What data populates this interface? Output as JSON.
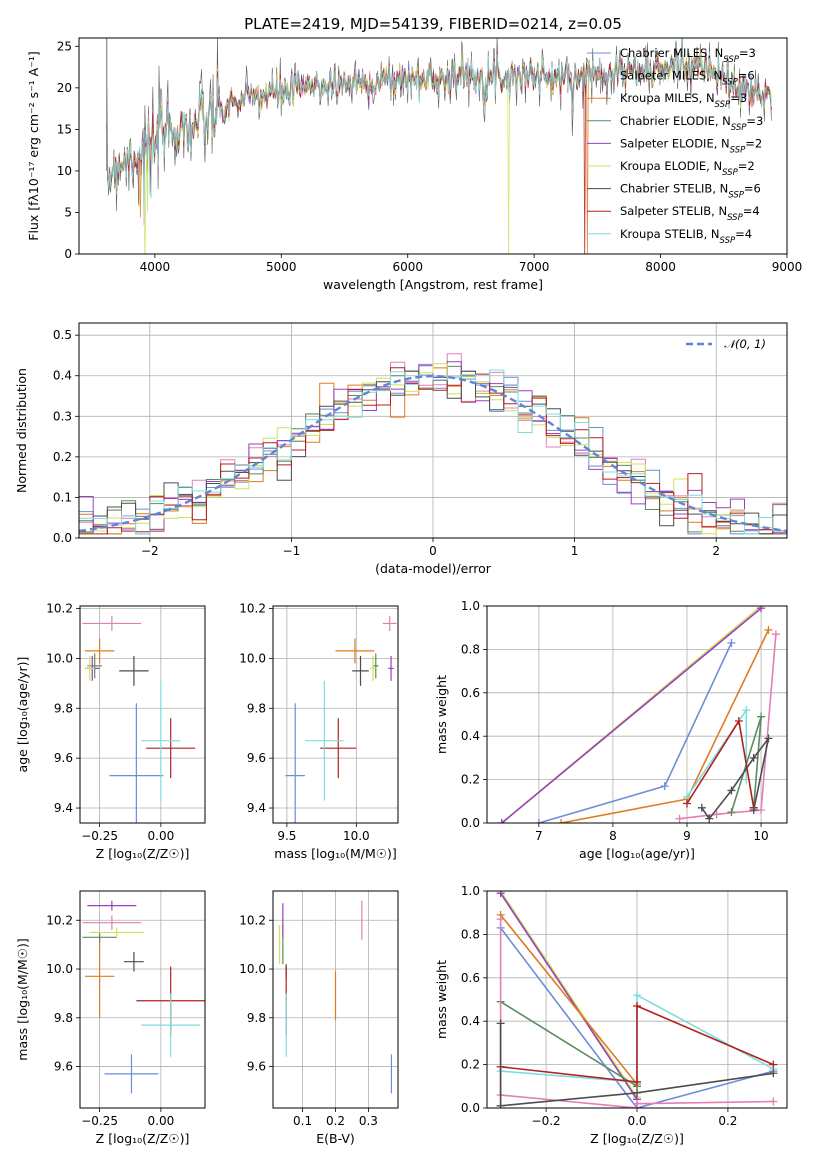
{
  "title": "PLATE=2419, MJD=54139, FIBERID=0214, z=0.05",
  "series": [
    {
      "name": "Chabrier MILES",
      "nssp": "3",
      "color": "#6a8ed8"
    },
    {
      "name": "Salpeter MILES",
      "nssp": "6",
      "color": "#e47fb5"
    },
    {
      "name": "Kroupa MILES",
      "nssp": "3",
      "color": "#e07b1f"
    },
    {
      "name": "Chabrier ELODIE",
      "nssp": "3",
      "color": "#5e8a5e"
    },
    {
      "name": "Salpeter ELODIE",
      "nssp": "2",
      "color": "#9b3fbf"
    },
    {
      "name": "Kroupa ELODIE",
      "nssp": "2",
      "color": "#cfe05a"
    },
    {
      "name": "Chabrier STELIB",
      "nssp": "6",
      "color": "#4d4d4d"
    },
    {
      "name": "Salpeter STELIB",
      "nssp": "4",
      "color": "#b22020"
    },
    {
      "name": "Kroupa STELIB",
      "nssp": "4",
      "color": "#7fdcdc"
    }
  ],
  "legend_nssp_label": "N",
  "legend_nssp_sub": "SSP",
  "normal_label": "𝒩(0, 1)",
  "chart_data": [
    {
      "id": "spectrum",
      "type": "line",
      "xlabel": "wavelength [Angstrom, rest frame]",
      "ylabel": "Flux [fλ10⁻¹⁷ erg cm⁻² s⁻¹ A⁻¹]",
      "xlim": [
        3400,
        9000
      ],
      "ylim": [
        0,
        26
      ],
      "xticks": [
        4000,
        5000,
        6000,
        7000,
        8000,
        9000
      ],
      "yticks": [
        0,
        5,
        10,
        15,
        20,
        25
      ],
      "grid": false,
      "legend": "right",
      "continuum": [
        [
          3620,
          9
        ],
        [
          3700,
          11
        ],
        [
          3800,
          11.5
        ],
        [
          3900,
          12.5
        ],
        [
          4000,
          13.5
        ],
        [
          4100,
          15
        ],
        [
          4200,
          15
        ],
        [
          4300,
          15.5
        ],
        [
          4400,
          16
        ],
        [
          4500,
          17
        ],
        [
          4600,
          18
        ],
        [
          4800,
          19
        ],
        [
          5000,
          19.5
        ],
        [
          5200,
          20
        ],
        [
          5500,
          20.5
        ],
        [
          6000,
          21
        ],
        [
          6500,
          21.5
        ],
        [
          7000,
          21.5
        ],
        [
          7200,
          21
        ],
        [
          7400,
          21.5
        ],
        [
          7600,
          22
        ],
        [
          7800,
          22
        ],
        [
          8000,
          22
        ],
        [
          8200,
          23
        ],
        [
          8400,
          22
        ],
        [
          8600,
          20
        ],
        [
          8800,
          19
        ]
      ],
      "gaps": [
        {
          "x": 3920,
          "series": 5
        },
        {
          "x": 6800,
          "series": 5
        },
        {
          "x": 7400,
          "series": 7
        },
        {
          "x": 7420,
          "series": 2
        }
      ]
    },
    {
      "id": "residuals",
      "type": "histogram",
      "xlabel": "(data-model)/error",
      "ylabel": "Normed distribution",
      "xlim": [
        -2.5,
        2.5
      ],
      "ylim": [
        0,
        0.53
      ],
      "xticks": [
        -2,
        -1,
        0,
        1,
        2
      ],
      "yticks": [
        0.0,
        0.1,
        0.2,
        0.3,
        0.4,
        0.5
      ],
      "grid": true,
      "legend": "top-right",
      "bin_width": 0.1,
      "normal": {
        "mean": 0,
        "sigma": 1
      }
    },
    {
      "id": "age_vs_Z",
      "type": "scatter",
      "xlabel": "Z [log₁₀(Z/Z☉)]",
      "ylabel": "age  [log₁₀(age/yr)]",
      "xlim": [
        -0.33,
        0.18
      ],
      "ylim": [
        9.34,
        10.21
      ],
      "xticks": [
        -0.25,
        0.0
      ],
      "yticks": [
        9.4,
        9.6,
        9.8,
        10.0,
        10.2
      ],
      "grid": true,
      "points": [
        {
          "s": 0,
          "x": -0.1,
          "y": 9.53,
          "xe": 0.11,
          "ye": 0.29
        },
        {
          "s": 1,
          "x": -0.2,
          "y": 10.14,
          "xe": 0.12,
          "ye": 0.03
        },
        {
          "s": 2,
          "x": -0.25,
          "y": 10.03,
          "xe": 0.06,
          "ye": 0.05
        },
        {
          "s": 3,
          "x": -0.27,
          "y": 9.97,
          "xe": 0.03,
          "ye": 0.05
        },
        {
          "s": 4,
          "x": -0.28,
          "y": 9.96,
          "xe": 0.03,
          "ye": 0.05
        },
        {
          "s": 5,
          "x": -0.29,
          "y": 9.96,
          "xe": 0.02,
          "ye": 0.05
        },
        {
          "s": 6,
          "x": -0.11,
          "y": 9.95,
          "xe": 0.06,
          "ye": 0.06
        },
        {
          "s": 7,
          "x": 0.04,
          "y": 9.64,
          "xe": 0.1,
          "ye": 0.12
        },
        {
          "s": 8,
          "x": 0.0,
          "y": 9.67,
          "xe": 0.08,
          "ye": 0.24
        }
      ]
    },
    {
      "id": "age_vs_mass",
      "type": "scatter",
      "xlabel": "mass [log₁₀(M/M☉)]",
      "ylabel": "",
      "xlim": [
        9.4,
        10.3
      ],
      "ylim": [
        9.34,
        10.21
      ],
      "xticks": [
        9.5,
        10.0
      ],
      "yticks": [
        9.4,
        9.6,
        9.8,
        10.0,
        10.2
      ],
      "grid": true,
      "points": [
        {
          "s": 0,
          "x": 9.56,
          "y": 9.53,
          "xe": 0.07,
          "ye": 0.29
        },
        {
          "s": 1,
          "x": 10.24,
          "y": 10.14,
          "xe": 0.05,
          "ye": 0.03
        },
        {
          "s": 2,
          "x": 9.99,
          "y": 10.03,
          "xe": 0.14,
          "ye": 0.05
        },
        {
          "s": 3,
          "x": 10.14,
          "y": 9.97,
          "xe": 0.02,
          "ye": 0.05
        },
        {
          "s": 4,
          "x": 10.25,
          "y": 9.96,
          "xe": 0.02,
          "ye": 0.05
        },
        {
          "s": 5,
          "x": 10.12,
          "y": 9.96,
          "xe": 0.02,
          "ye": 0.05
        },
        {
          "s": 6,
          "x": 10.03,
          "y": 9.95,
          "xe": 0.06,
          "ye": 0.06
        },
        {
          "s": 7,
          "x": 9.87,
          "y": 9.64,
          "xe": 0.13,
          "ye": 0.12
        },
        {
          "s": 8,
          "x": 9.77,
          "y": 9.67,
          "xe": 0.14,
          "ye": 0.24
        }
      ]
    },
    {
      "id": "weight_vs_age",
      "type": "line",
      "xlabel": "age  [log₁₀(age/yr)]",
      "ylabel": "mass weight",
      "xlim": [
        6.3,
        10.35
      ],
      "ylim": [
        0,
        1
      ],
      "xticks": [
        7,
        8,
        9,
        10
      ],
      "yticks": [
        0.0,
        0.2,
        0.4,
        0.6,
        0.8,
        1.0
      ],
      "grid": true,
      "lines": [
        {
          "s": 5,
          "x": [
            6.5,
            10.0
          ],
          "y": [
            0.0,
            1.0
          ]
        },
        {
          "s": 4,
          "x": [
            6.5,
            10.0
          ],
          "y": [
            0.0,
            0.99
          ]
        },
        {
          "s": 0,
          "x": [
            7.0,
            8.7,
            9.6
          ],
          "y": [
            0.0,
            0.17,
            0.83
          ]
        },
        {
          "s": 2,
          "x": [
            7.3,
            9.0,
            10.1
          ],
          "y": [
            0.0,
            0.11,
            0.89
          ]
        },
        {
          "s": 1,
          "x": [
            8.9,
            9.4,
            10.0,
            10.2
          ],
          "y": [
            0.02,
            0.04,
            0.06,
            0.87
          ]
        },
        {
          "s": 8,
          "x": [
            9.0,
            9.8,
            9.8
          ],
          "y": [
            0.12,
            0.52,
            0.2
          ]
        },
        {
          "s": 3,
          "x": [
            9.6,
            10.0,
            9.9
          ],
          "y": [
            0.05,
            0.49,
            0.07
          ]
        },
        {
          "s": 7,
          "x": [
            9.0,
            9.7,
            9.9
          ],
          "y": [
            0.09,
            0.47,
            0.07
          ]
        },
        {
          "s": 6,
          "x": [
            9.2,
            9.3,
            9.6,
            9.9,
            10.1,
            9.9
          ],
          "y": [
            0.07,
            0.02,
            0.15,
            0.3,
            0.39,
            0.06
          ]
        }
      ]
    },
    {
      "id": "mass_vs_Z",
      "type": "scatter",
      "xlabel": "Z [log₁₀(Z/Z☉)]",
      "ylabel": "mass [log₁₀(M/M☉)]",
      "xlim": [
        -0.33,
        0.18
      ],
      "ylim": [
        9.43,
        10.32
      ],
      "xticks": [
        -0.25,
        0.0
      ],
      "yticks": [
        9.6,
        9.8,
        10.0,
        10.2
      ],
      "grid": true,
      "points": [
        {
          "s": 0,
          "x": -0.12,
          "y": 9.57,
          "xe": 0.11,
          "ye": 0.08
        },
        {
          "s": 1,
          "x": -0.2,
          "y": 10.19,
          "xe": 0.12,
          "ye": 0.03
        },
        {
          "s": 2,
          "x": -0.25,
          "y": 9.97,
          "xe": 0.06,
          "ye": 0.17
        },
        {
          "s": 3,
          "x": -0.25,
          "y": 10.13,
          "xe": 0.07,
          "ye": 0.02
        },
        {
          "s": 4,
          "x": -0.2,
          "y": 10.26,
          "xe": 0.1,
          "ye": 0.02
        },
        {
          "s": 5,
          "x": -0.18,
          "y": 10.15,
          "xe": 0.11,
          "ye": 0.02
        },
        {
          "s": 6,
          "x": -0.11,
          "y": 10.03,
          "xe": 0.04,
          "ye": 0.04
        },
        {
          "s": 7,
          "x": 0.04,
          "y": 9.87,
          "xe": 0.14,
          "ye": 0.14
        },
        {
          "s": 8,
          "x": 0.04,
          "y": 9.77,
          "xe": 0.12,
          "ye": 0.13
        }
      ]
    },
    {
      "id": "mass_vs_EBV",
      "type": "scatter",
      "xlabel": "E(B-V)",
      "ylabel": "",
      "xlim": [
        0.01,
        0.39
      ],
      "ylim": [
        9.43,
        10.32
      ],
      "xticks": [
        0.1,
        0.2,
        0.3
      ],
      "yticks": [
        9.6,
        9.8,
        10.0,
        10.2
      ],
      "grid": true,
      "points": [
        {
          "s": 0,
          "x": 0.37,
          "y": 9.57,
          "xe": 0.0,
          "ye": 0.08
        },
        {
          "s": 1,
          "x": 0.28,
          "y": 10.2,
          "xe": 0.0,
          "ye": 0.08
        },
        {
          "s": 2,
          "x": 0.2,
          "y": 9.89,
          "xe": 0.0,
          "ye": 0.1
        },
        {
          "s": 3,
          "x": 0.04,
          "y": 10.1,
          "xe": 0.0,
          "ye": 0.08
        },
        {
          "s": 4,
          "x": 0.04,
          "y": 10.2,
          "xe": 0.0,
          "ye": 0.07
        },
        {
          "s": 5,
          "x": 0.03,
          "y": 10.1,
          "xe": 0.0,
          "ye": 0.08
        },
        {
          "s": 6,
          "x": 0.05,
          "y": 9.99,
          "xe": 0.0,
          "ye": 0.03
        },
        {
          "s": 7,
          "x": 0.05,
          "y": 9.87,
          "xe": 0.0,
          "ye": 0.14
        },
        {
          "s": 8,
          "x": 0.05,
          "y": 9.77,
          "xe": 0.0,
          "ye": 0.13
        }
      ]
    },
    {
      "id": "weight_vs_Z",
      "type": "line",
      "xlabel": "Z [log₁₀(Z/Z☉)]",
      "ylabel": "mass weight",
      "xlim": [
        -0.33,
        0.33
      ],
      "ylim": [
        0,
        1
      ],
      "xticks": [
        -0.2,
        0.0,
        0.2
      ],
      "yticks": [
        0.0,
        0.2,
        0.4,
        0.6,
        0.8,
        1.0
      ],
      "grid": true,
      "lines": [
        {
          "s": 5,
          "x": [
            -0.3,
            0.0
          ],
          "y": [
            1.0,
            0.05
          ]
        },
        {
          "s": 4,
          "x": [
            -0.3,
            0.0
          ],
          "y": [
            0.99,
            0.04
          ]
        },
        {
          "s": 2,
          "x": [
            -0.3,
            0.0
          ],
          "y": [
            0.89,
            0.11
          ]
        },
        {
          "s": 0,
          "x": [
            -0.3,
            0.0,
            0.3
          ],
          "y": [
            0.83,
            0.0,
            0.17
          ]
        },
        {
          "s": 3,
          "x": [
            -0.3,
            0.0
          ],
          "y": [
            0.49,
            0.1
          ]
        },
        {
          "s": 8,
          "x": [
            -0.3,
            0.0,
            0.0,
            0.3
          ],
          "y": [
            0.17,
            0.12,
            0.52,
            0.18
          ]
        },
        {
          "s": 7,
          "x": [
            -0.3,
            0.0,
            0.0,
            0.3
          ],
          "y": [
            0.19,
            0.12,
            0.47,
            0.2
          ]
        },
        {
          "s": 1,
          "x": [
            -0.3,
            -0.3,
            0.0,
            0.0,
            0.3
          ],
          "y": [
            0.87,
            0.06,
            0.0,
            0.02,
            0.03
          ]
        },
        {
          "s": 6,
          "x": [
            -0.3,
            -0.3,
            0.0,
            0.3
          ],
          "y": [
            0.39,
            0.01,
            0.07,
            0.16
          ]
        }
      ]
    }
  ]
}
